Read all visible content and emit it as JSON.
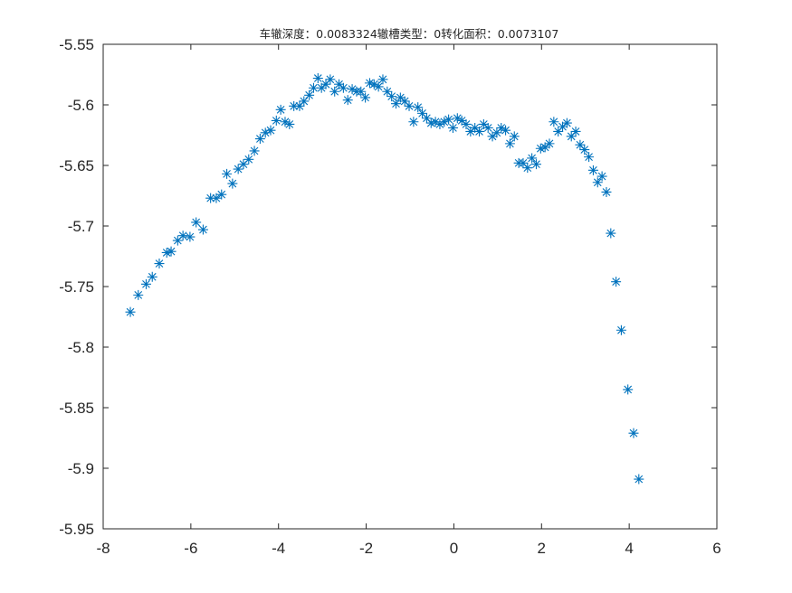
{
  "chart_data": {
    "type": "scatter",
    "title": "车辙深度：0.0083324辙槽类型：0转化面积：0.0073107",
    "xlabel": "",
    "ylabel": "",
    "xlim": [
      -8,
      6
    ],
    "ylim": [
      -5.95,
      -5.55
    ],
    "xticks": [
      -8,
      -6,
      -4,
      -2,
      0,
      2,
      4,
      6
    ],
    "xtick_labels": [
      "-8",
      "-6",
      "-4",
      "-2",
      "0",
      "2",
      "4",
      "6"
    ],
    "yticks": [
      -5.55,
      -5.6,
      -5.65,
      -5.7,
      -5.75,
      -5.8,
      -5.85,
      -5.9,
      -5.95
    ],
    "ytick_labels": [
      "-5.55",
      "-5.6",
      "-5.65",
      "-5.7",
      "-5.75",
      "-5.8",
      "-5.85",
      "-5.9",
      "-5.95"
    ],
    "grid": false,
    "marker": "asterisk",
    "marker_color": "#0072bd",
    "axis_color": "#262626",
    "x": [
      -7.38,
      -7.2,
      -7.02,
      -6.88,
      -6.72,
      -6.55,
      -6.45,
      -6.3,
      -6.18,
      -6.02,
      -5.88,
      -5.72,
      -5.55,
      -5.42,
      -5.3,
      -5.18,
      -5.05,
      -4.92,
      -4.8,
      -4.68,
      -4.55,
      -4.42,
      -4.3,
      -4.18,
      -4.05,
      -3.95,
      -3.85,
      -3.75,
      -3.65,
      -3.52,
      -3.42,
      -3.3,
      -3.2,
      -3.1,
      -3.02,
      -2.92,
      -2.82,
      -2.72,
      -2.62,
      -2.52,
      -2.42,
      -2.32,
      -2.22,
      -2.12,
      -2.02,
      -1.92,
      -1.82,
      -1.72,
      -1.62,
      -1.52,
      -1.42,
      -1.32,
      -1.22,
      -1.12,
      -1.02,
      -0.92,
      -0.82,
      -0.72,
      -0.62,
      -0.52,
      -0.42,
      -0.32,
      -0.22,
      -0.12,
      -0.02,
      0.08,
      0.18,
      0.28,
      0.38,
      0.48,
      0.58,
      0.68,
      0.78,
      0.88,
      0.98,
      1.08,
      1.18,
      1.28,
      1.38,
      1.48,
      1.58,
      1.68,
      1.78,
      1.88,
      1.98,
      2.08,
      2.18,
      2.28,
      2.38,
      2.48,
      2.58,
      2.68,
      2.78,
      2.88,
      2.98,
      3.08,
      3.18,
      3.28,
      3.38,
      3.48,
      3.58,
      3.7,
      3.82,
      3.97,
      4.1,
      4.22
    ],
    "y": [
      -5.771,
      -5.757,
      -5.748,
      -5.742,
      -5.731,
      -5.722,
      -5.721,
      -5.712,
      -5.708,
      -5.709,
      -5.697,
      -5.703,
      -5.677,
      -5.677,
      -5.674,
      -5.657,
      -5.665,
      -5.653,
      -5.649,
      -5.645,
      -5.638,
      -5.628,
      -5.623,
      -5.621,
      -5.613,
      -5.604,
      -5.614,
      -5.616,
      -5.601,
      -5.601,
      -5.597,
      -5.592,
      -5.586,
      -5.578,
      -5.586,
      -5.583,
      -5.579,
      -5.589,
      -5.583,
      -5.586,
      -5.596,
      -5.587,
      -5.589,
      -5.589,
      -5.594,
      -5.582,
      -5.583,
      -5.585,
      -5.579,
      -5.589,
      -5.593,
      -5.599,
      -5.594,
      -5.597,
      -5.601,
      -5.614,
      -5.602,
      -5.607,
      -5.611,
      -5.615,
      -5.614,
      -5.616,
      -5.614,
      -5.612,
      -5.619,
      -5.611,
      -5.613,
      -5.616,
      -5.622,
      -5.619,
      -5.622,
      -5.616,
      -5.619,
      -5.626,
      -5.623,
      -5.619,
      -5.621,
      -5.632,
      -5.626,
      -5.648,
      -5.648,
      -5.652,
      -5.644,
      -5.649,
      -5.636,
      -5.635,
      -5.632,
      -5.614,
      -5.622,
      -5.618,
      -5.615,
      -5.626,
      -5.622,
      -5.633,
      -5.637,
      -5.643,
      -5.654,
      -5.664,
      -5.659,
      -5.672,
      -5.706,
      -5.746,
      -5.786,
      -5.835,
      -5.871,
      -5.909
    ]
  }
}
